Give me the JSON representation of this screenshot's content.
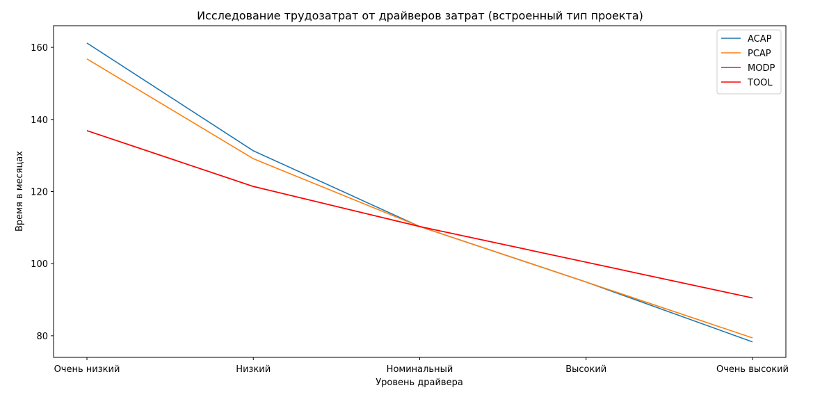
{
  "chart_data": {
    "type": "line",
    "title": "Исследование трудозатрат от драйверов затрат (встроенный тип проекта)",
    "xlabel": "Уровень драйвера",
    "ylabel": "Время в месяцах",
    "categories": [
      "Очень низкий",
      "Низкий",
      "Номинальный",
      "Высокий",
      "Очень высокий"
    ],
    "ylim": [
      74,
      166
    ],
    "yticks": [
      80,
      100,
      120,
      140,
      160
    ],
    "legend_position": "top-right",
    "series": [
      {
        "name": "ACAP",
        "color": "#1f77b4",
        "values": [
          161.2,
          131.3,
          110.3,
          94.9,
          78.3
        ]
      },
      {
        "name": "PCAP",
        "color": "#ff7f0e",
        "values": [
          156.8,
          129.1,
          110.3,
          94.9,
          79.4
        ]
      },
      {
        "name": "MODP",
        "color": "#d62728",
        "values": [
          136.9,
          121.4,
          110.3,
          100.4,
          90.5
        ]
      },
      {
        "name": "TOOL",
        "color": "#ff0000",
        "values": [
          136.9,
          121.4,
          110.3,
          100.4,
          90.5
        ]
      }
    ]
  }
}
